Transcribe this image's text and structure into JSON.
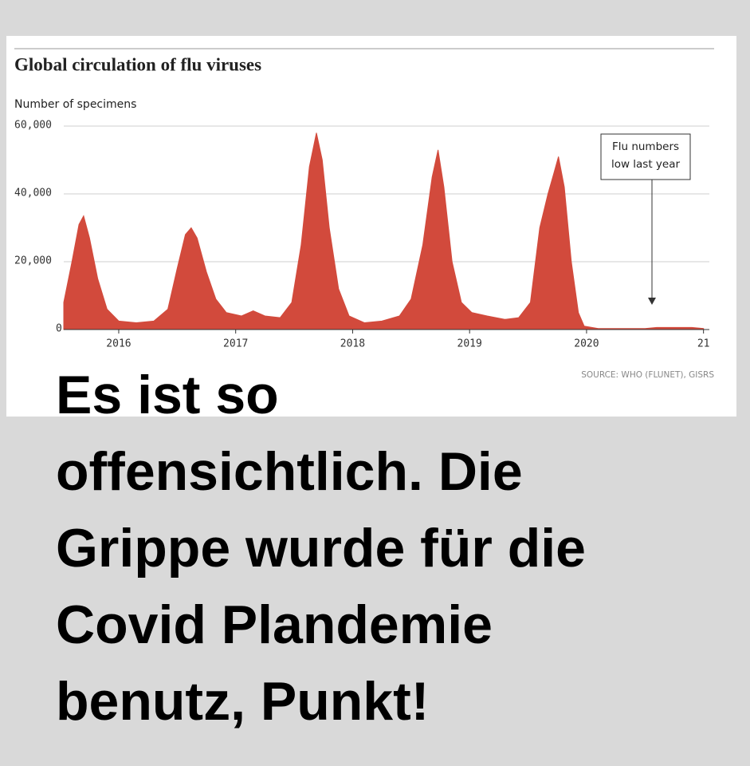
{
  "chart_data": {
    "type": "area",
    "title": "Global circulation of flu viruses",
    "y_label": "Number of specimens",
    "color": "#d24a3c",
    "x": [
      2015.53,
      2015.6,
      2015.66,
      2015.7,
      2015.75,
      2015.82,
      2015.9,
      2016.0,
      2016.15,
      2016.3,
      2016.42,
      2016.5,
      2016.57,
      2016.62,
      2016.67,
      2016.75,
      2016.83,
      2016.92,
      2017.05,
      2017.15,
      2017.25,
      2017.38,
      2017.48,
      2017.56,
      2017.63,
      2017.69,
      2017.74,
      2017.8,
      2017.88,
      2017.97,
      2018.1,
      2018.25,
      2018.4,
      2018.5,
      2018.6,
      2018.68,
      2018.73,
      2018.78,
      2018.85,
      2018.93,
      2019.02,
      2019.15,
      2019.3,
      2019.42,
      2019.52,
      2019.6,
      2019.67,
      2019.72,
      2019.76,
      2019.81,
      2019.87,
      2019.93,
      2019.98,
      2020.1,
      2020.5,
      2020.6,
      2020.9,
      2021.0
    ],
    "values": [
      8000,
      20000,
      31000,
      33500,
      27000,
      15000,
      6000,
      2500,
      2000,
      2500,
      6000,
      18000,
      28000,
      30000,
      27000,
      17000,
      9000,
      5000,
      4000,
      5500,
      4000,
      3500,
      8000,
      25000,
      48000,
      58000,
      50000,
      30000,
      12000,
      4000,
      2000,
      2500,
      4000,
      9000,
      25000,
      45000,
      53000,
      42000,
      20000,
      8000,
      5000,
      4000,
      3000,
      3500,
      8000,
      30000,
      40000,
      46000,
      51000,
      42000,
      20000,
      5000,
      1000,
      300,
      300,
      600,
      600,
      300
    ],
    "xlim": [
      2015.53,
      2021.05
    ],
    "xticks": [
      2016,
      2017,
      2018,
      2019,
      2020,
      {
        "value": 2021,
        "label": "21"
      }
    ],
    "ylim": [
      0,
      60000
    ],
    "yticks": [
      0,
      {
        "value": 20000,
        "label": "20,000"
      },
      {
        "value": 40000,
        "label": "40,000"
      },
      {
        "value": 60000,
        "label": "60,000"
      }
    ],
    "grid": true,
    "annotation": [
      "Flu numbers",
      "low last year"
    ],
    "source": "SOURCE: WHO (FLUNET), GISRS"
  },
  "caption": [
    "Es ist so",
    "offensichtlich. Die",
    "Grippe wurde für die",
    "Covid Plandemie",
    "benutz, Punkt!"
  ]
}
